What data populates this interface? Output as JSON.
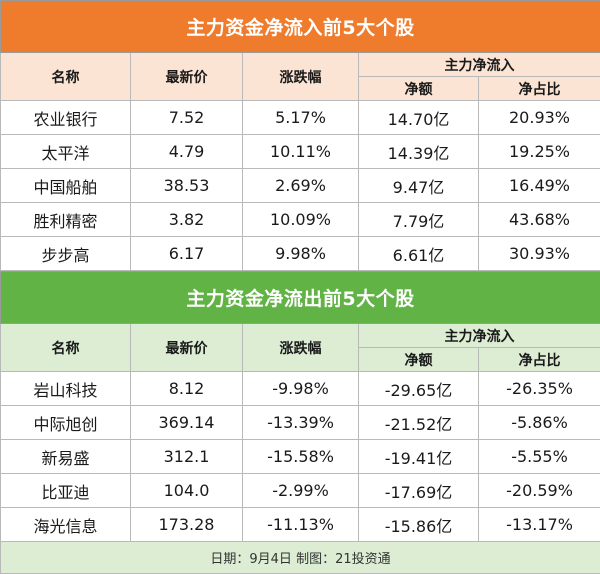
{
  "inflow": {
    "title": "主力资金净流入前5大个股",
    "headers": {
      "name": "名称",
      "price": "最新价",
      "change": "涨跌幅",
      "group": "主力净流入",
      "net": "净额",
      "ratio": "净占比"
    },
    "rows": [
      {
        "name": "农业银行",
        "price": "7.52",
        "change": "5.17%",
        "net": "14.70亿",
        "ratio": "20.93%"
      },
      {
        "name": "太平洋",
        "price": "4.79",
        "change": "10.11%",
        "net": "14.39亿",
        "ratio": "19.25%"
      },
      {
        "name": "中国船舶",
        "price": "38.53",
        "change": "2.69%",
        "net": "9.47亿",
        "ratio": "16.49%"
      },
      {
        "name": "胜利精密",
        "price": "3.82",
        "change": "10.09%",
        "net": "7.79亿",
        "ratio": "43.68%"
      },
      {
        "name": "步步高",
        "price": "6.17",
        "change": "9.98%",
        "net": "6.61亿",
        "ratio": "30.93%"
      }
    ]
  },
  "outflow": {
    "title": "主力资金净流出前5大个股",
    "headers": {
      "name": "名称",
      "price": "最新价",
      "change": "涨跌幅",
      "group": "主力净流入",
      "net": "净额",
      "ratio": "净占比"
    },
    "rows": [
      {
        "name": "岩山科技",
        "price": "8.12",
        "change": "-9.98%",
        "net": "-29.65亿",
        "ratio": "-26.35%"
      },
      {
        "name": "中际旭创",
        "price": "369.14",
        "change": "-13.39%",
        "net": "-21.52亿",
        "ratio": "-5.86%"
      },
      {
        "name": "新易盛",
        "price": "312.1",
        "change": "-15.58%",
        "net": "-19.41亿",
        "ratio": "-5.55%"
      },
      {
        "name": "比亚迪",
        "price": "104.0",
        "change": "-2.99%",
        "net": "-17.69亿",
        "ratio": "-20.59%"
      },
      {
        "name": "海光信息",
        "price": "173.28",
        "change": "-11.13%",
        "net": "-15.86亿",
        "ratio": "-13.17%"
      }
    ]
  },
  "footer": "日期：9月4日 制图：21投资通",
  "colors": {
    "inflow_accent": "#ee7c2c",
    "outflow_accent": "#62b346"
  }
}
